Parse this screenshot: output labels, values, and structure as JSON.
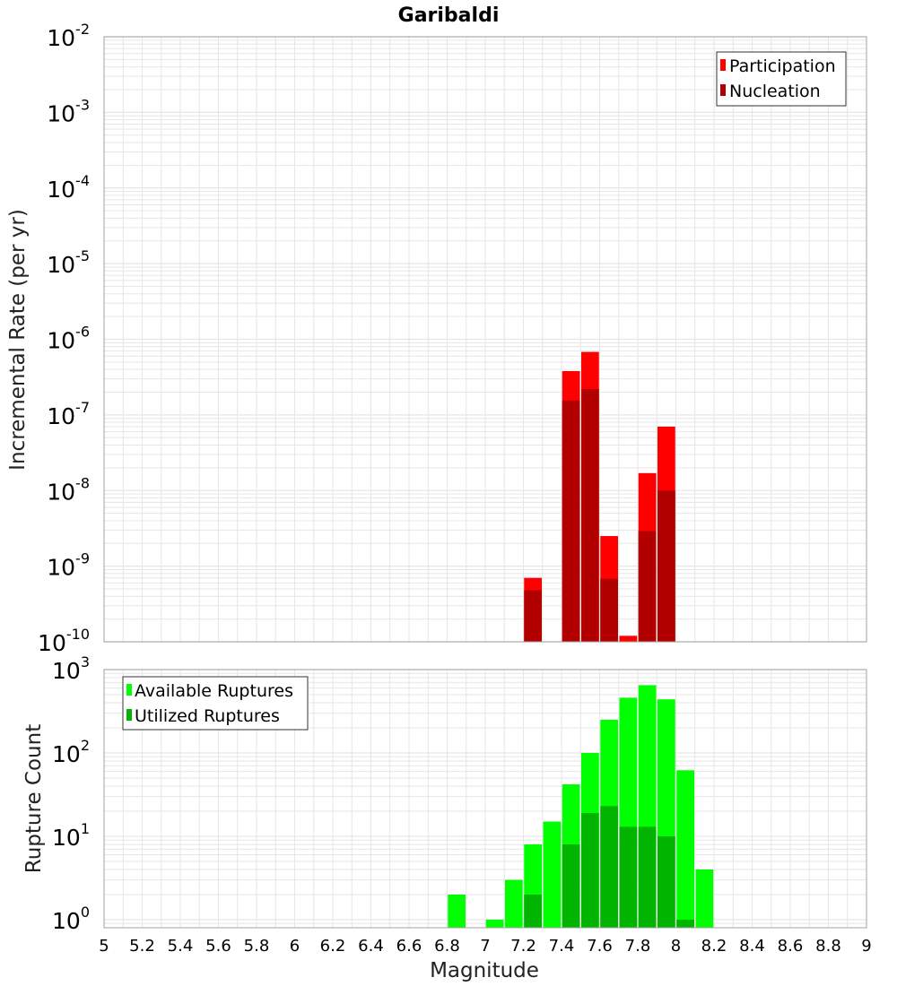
{
  "title": "Garibaldi",
  "x_label": "Magnitude",
  "chart_data": [
    {
      "type": "bar",
      "name": "rate-panel",
      "ylabel": "Incremental Rate (per yr)",
      "yscale": "log",
      "ylim": [
        1e-10,
        0.01
      ],
      "xlim": [
        5,
        9
      ],
      "grid": true,
      "legend_position": "top-right",
      "bar_width": 0.1,
      "series": [
        {
          "name": "Participation",
          "color": "#ff0000",
          "x": [
            7.25,
            7.45,
            7.55,
            7.65,
            7.75,
            7.85,
            7.95
          ],
          "values": [
            7e-10,
            3.8e-07,
            6.8e-07,
            2.5e-09,
            1.2e-10,
            1.7e-08,
            7e-08
          ]
        },
        {
          "name": "Nucleation",
          "color": "#b20000",
          "x": [
            7.25,
            7.45,
            7.55,
            7.65,
            7.85,
            7.95
          ],
          "values": [
            4.8e-10,
            1.55e-07,
            2.2e-07,
            6.8e-10,
            2.9e-09,
            1e-08
          ]
        }
      ]
    },
    {
      "type": "bar",
      "name": "count-panel",
      "ylabel": "Rupture Count",
      "yscale": "log",
      "ylim": [
        0.8,
        1000
      ],
      "xlim": [
        5,
        9
      ],
      "grid": true,
      "legend_position": "top-left",
      "bar_width": 0.1,
      "series": [
        {
          "name": "Available Ruptures",
          "color": "#00ff00",
          "x": [
            6.85,
            7.05,
            7.15,
            7.25,
            7.35,
            7.45,
            7.55,
            7.65,
            7.75,
            7.85,
            7.95,
            8.05,
            8.15
          ],
          "values": [
            2,
            1,
            3,
            8,
            15,
            42,
            100,
            250,
            460,
            650,
            440,
            62,
            4
          ]
        },
        {
          "name": "Utilized Ruptures",
          "color": "#00b400",
          "x": [
            7.25,
            7.45,
            7.55,
            7.65,
            7.75,
            7.85,
            7.95,
            8.05
          ],
          "values": [
            2,
            8,
            19,
            23,
            13,
            13,
            10,
            1
          ]
        }
      ]
    }
  ],
  "x_ticks": [
    "5",
    "5.2",
    "5.4",
    "5.6",
    "5.8",
    "6",
    "6.2",
    "6.4",
    "6.6",
    "6.8",
    "7",
    "7.2",
    "7.4",
    "7.6",
    "7.8",
    "8",
    "8.2",
    "8.4",
    "8.6",
    "8.8",
    "9"
  ],
  "top_y_ticks": [
    {
      "base": "10",
      "exp": "-10"
    },
    {
      "base": "10",
      "exp": "-9"
    },
    {
      "base": "10",
      "exp": "-8"
    },
    {
      "base": "10",
      "exp": "-7"
    },
    {
      "base": "10",
      "exp": "-6"
    },
    {
      "base": "10",
      "exp": "-5"
    },
    {
      "base": "10",
      "exp": "-4"
    },
    {
      "base": "10",
      "exp": "-3"
    },
    {
      "base": "10",
      "exp": "-2"
    }
  ],
  "bottom_y_ticks": [
    {
      "base": "10",
      "exp": "0"
    },
    {
      "base": "10",
      "exp": "1"
    },
    {
      "base": "10",
      "exp": "2"
    },
    {
      "base": "10",
      "exp": "3"
    }
  ],
  "colors": {
    "grid": "#e6e6e6",
    "frame": "#a0a0a0"
  }
}
